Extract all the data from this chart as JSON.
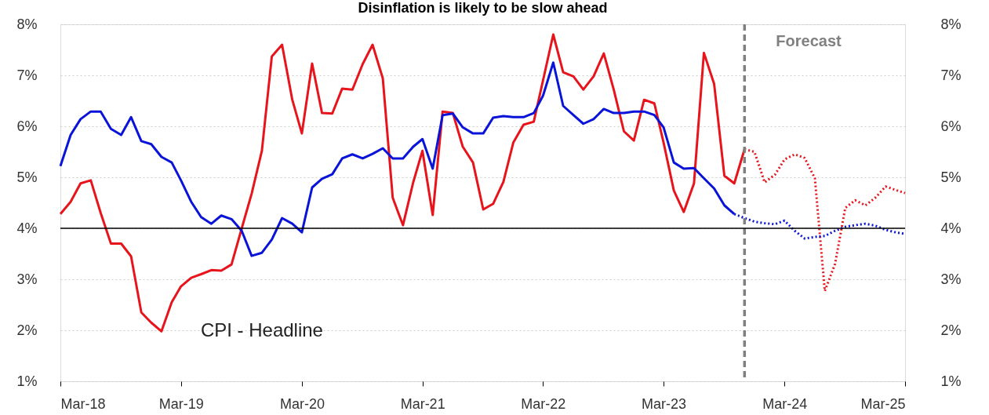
{
  "chart_data": {
    "type": "line",
    "title": "Disinflation is likely to be slow ahead",
    "xlim": [
      "2018-03",
      "2025-03"
    ],
    "xticks": [
      {
        "value": "2018-03",
        "label": "Mar-18"
      },
      {
        "value": "2019-03",
        "label": "Mar-19"
      },
      {
        "value": "2020-03",
        "label": "Mar-20"
      },
      {
        "value": "2021-03",
        "label": "Mar-21"
      },
      {
        "value": "2022-03",
        "label": "Mar-22"
      },
      {
        "value": "2023-03",
        "label": "Mar-23"
      },
      {
        "value": "2024-03",
        "label": "Mar-24"
      },
      {
        "value": "2025-03",
        "label": "Mar-25"
      }
    ],
    "ylim": [
      1,
      8
    ],
    "yticks": [
      {
        "value": 1,
        "label": "1%"
      },
      {
        "value": 2,
        "label": "2%"
      },
      {
        "value": 3,
        "label": "3%"
      },
      {
        "value": 4,
        "label": "4%"
      },
      {
        "value": 5,
        "label": "5%"
      },
      {
        "value": 6,
        "label": "6%"
      },
      {
        "value": 7,
        "label": "7%"
      },
      {
        "value": 8,
        "label": "8%"
      }
    ],
    "y2lim": [
      1,
      8
    ],
    "y2ticks": [
      {
        "value": 1,
        "label": "1%"
      },
      {
        "value": 2,
        "label": "2%"
      },
      {
        "value": 3,
        "label": "3%"
      },
      {
        "value": 4,
        "label": "4%"
      },
      {
        "value": 5,
        "label": "5%"
      },
      {
        "value": 6,
        "label": "6%"
      },
      {
        "value": 7,
        "label": "7%"
      },
      {
        "value": 8,
        "label": "8%"
      }
    ],
    "grid": "y",
    "marker": "none",
    "ref_lines": [
      {
        "axis": "y2",
        "value": 4,
        "color": "#000000",
        "line_style": "solid"
      },
      {
        "axis": "x",
        "value": "2023-11",
        "label": "Forecast",
        "color": "#808080",
        "line_style": "dashed"
      }
    ],
    "series": [
      {
        "name": "CPI - Headline",
        "color": "#e8141c",
        "line_style": "solid",
        "x": [
          "2018-03",
          "2018-04",
          "2018-05",
          "2018-06",
          "2018-07",
          "2018-08",
          "2018-09",
          "2018-10",
          "2018-11",
          "2018-12",
          "2019-01",
          "2019-02",
          "2019-03",
          "2019-04",
          "2019-05",
          "2019-06",
          "2019-07",
          "2019-08",
          "2019-09",
          "2019-10",
          "2019-11",
          "2019-12",
          "2020-01",
          "2020-02",
          "2020-03",
          "2020-04",
          "2020-05",
          "2020-06",
          "2020-07",
          "2020-08",
          "2020-09",
          "2020-10",
          "2020-11",
          "2020-12",
          "2021-01",
          "2021-02",
          "2021-03",
          "2021-04",
          "2021-05",
          "2021-06",
          "2021-07",
          "2021-08",
          "2021-09",
          "2021-10",
          "2021-11",
          "2021-12",
          "2022-01",
          "2022-02",
          "2022-03",
          "2022-04",
          "2022-05",
          "2022-06",
          "2022-07",
          "2022-08",
          "2022-09",
          "2022-10",
          "2022-11",
          "2022-12",
          "2023-01",
          "2023-02",
          "2023-03",
          "2023-04",
          "2023-05",
          "2023-06",
          "2023-07",
          "2023-08",
          "2023-09",
          "2023-10",
          "2023-11"
        ],
        "values": [
          4.28,
          4.52,
          4.88,
          4.94,
          4.3,
          3.7,
          3.7,
          3.45,
          2.35,
          2.15,
          1.98,
          2.55,
          2.86,
          3.03,
          3.1,
          3.18,
          3.17,
          3.29,
          4.0,
          4.68,
          5.52,
          7.37,
          7.6,
          6.52,
          5.86,
          7.23,
          6.26,
          6.25,
          6.74,
          6.72,
          7.22,
          7.6,
          6.94,
          4.6,
          4.06,
          4.9,
          5.52,
          4.26,
          6.29,
          6.26,
          5.6,
          5.29,
          4.37,
          4.48,
          4.91,
          5.68,
          6.03,
          6.09,
          6.9,
          7.8,
          7.06,
          6.98,
          6.72,
          6.98,
          7.43,
          6.72,
          5.9,
          5.72,
          6.52,
          6.45,
          5.68,
          4.74,
          4.32,
          4.88,
          7.44,
          6.83,
          5.03,
          4.88,
          5.55
        ]
      },
      {
        "color": "#0a14d8",
        "line_style": "solid",
        "x": [
          "2018-03",
          "2018-04",
          "2018-05",
          "2018-06",
          "2018-07",
          "2018-08",
          "2018-09",
          "2018-10",
          "2018-11",
          "2018-12",
          "2019-01",
          "2019-02",
          "2019-03",
          "2019-04",
          "2019-05",
          "2019-06",
          "2019-07",
          "2019-08",
          "2019-09",
          "2019-10",
          "2019-11",
          "2019-12",
          "2020-01",
          "2020-02",
          "2020-03",
          "2020-04",
          "2020-05",
          "2020-06",
          "2020-07",
          "2020-08",
          "2020-09",
          "2020-10",
          "2020-11",
          "2020-12",
          "2021-01",
          "2021-02",
          "2021-03",
          "2021-04",
          "2021-05",
          "2021-06",
          "2021-07",
          "2021-08",
          "2021-09",
          "2021-10",
          "2021-11",
          "2021-12",
          "2022-01",
          "2022-02",
          "2022-03",
          "2022-04",
          "2022-05",
          "2022-06",
          "2022-07",
          "2022-08",
          "2022-09",
          "2022-10",
          "2022-11",
          "2022-12",
          "2023-01",
          "2023-02",
          "2023-03",
          "2023-04",
          "2023-05",
          "2023-06",
          "2023-07",
          "2023-08",
          "2023-09",
          "2023-10"
        ],
        "values": [
          5.22,
          5.83,
          6.14,
          6.29,
          6.29,
          5.95,
          5.83,
          6.18,
          5.71,
          5.65,
          5.4,
          5.29,
          4.94,
          4.52,
          4.22,
          4.09,
          4.25,
          4.18,
          3.95,
          3.46,
          3.52,
          3.78,
          4.2,
          4.09,
          3.92,
          4.8,
          4.97,
          5.06,
          5.37,
          5.45,
          5.37,
          5.46,
          5.57,
          5.37,
          5.37,
          5.6,
          5.75,
          5.17,
          6.22,
          6.25,
          5.98,
          5.86,
          5.86,
          6.17,
          6.2,
          6.18,
          6.18,
          6.26,
          6.6,
          7.25,
          6.4,
          6.22,
          6.05,
          6.14,
          6.34,
          6.26,
          6.26,
          6.29,
          6.29,
          6.22,
          5.98,
          5.29,
          5.17,
          5.18,
          4.98,
          4.78,
          4.45,
          4.28
        ]
      },
      {
        "color": "#e8141c",
        "line_style": "dotted",
        "x": [
          "2023-11",
          "2023-12",
          "2024-01",
          "2024-02",
          "2024-03",
          "2024-04",
          "2024-05",
          "2024-06",
          "2024-07",
          "2024-08",
          "2024-09",
          "2024-10",
          "2024-11",
          "2024-12",
          "2025-01",
          "2025-02",
          "2025-03"
        ],
        "values": [
          5.55,
          5.5,
          4.9,
          5.05,
          5.35,
          5.45,
          5.38,
          4.98,
          2.77,
          3.3,
          4.4,
          4.55,
          4.45,
          4.6,
          4.82,
          4.75,
          4.69
        ]
      },
      {
        "color": "#0a14d8",
        "line_style": "dotted",
        "x": [
          "2023-10",
          "2023-11",
          "2023-12",
          "2024-01",
          "2024-02",
          "2024-03",
          "2024-04",
          "2024-05",
          "2024-06",
          "2024-07",
          "2024-08",
          "2024-09",
          "2024-10",
          "2024-11",
          "2024-12",
          "2025-01",
          "2025-02",
          "2025-03"
        ],
        "values": [
          4.28,
          4.2,
          4.13,
          4.1,
          4.08,
          4.15,
          3.95,
          3.8,
          3.83,
          3.85,
          3.95,
          4.03,
          4.06,
          4.09,
          4.05,
          3.97,
          3.92,
          3.89
        ]
      }
    ]
  }
}
